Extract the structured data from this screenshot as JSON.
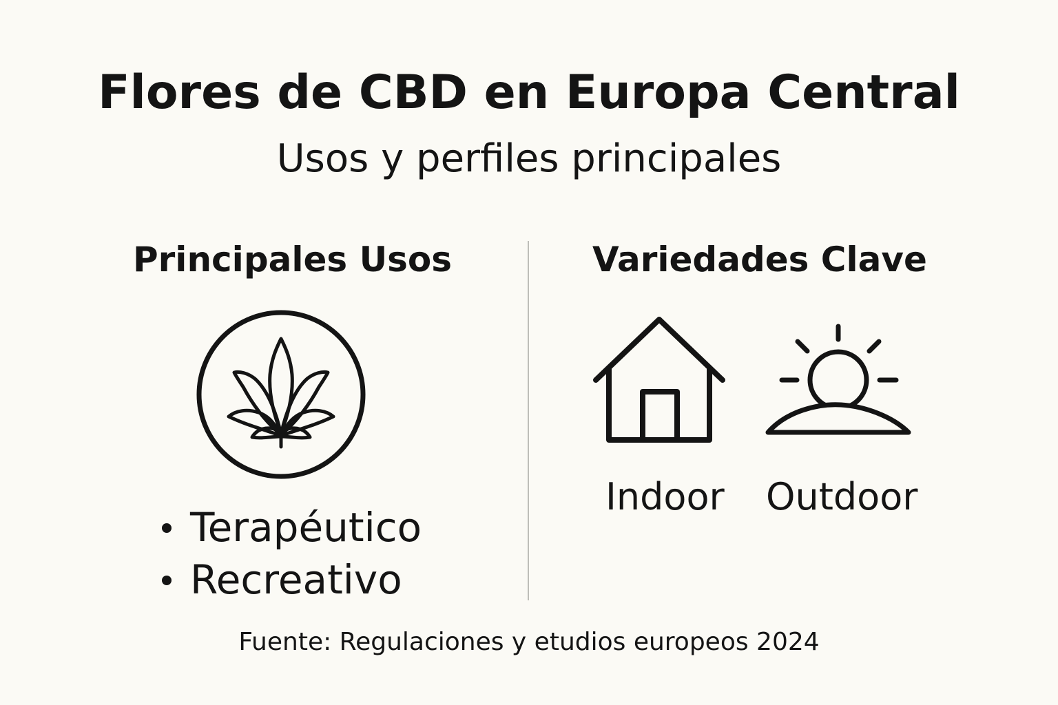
{
  "header": {
    "title": "Flores de CBD en Europa Central",
    "subtitle": "Usos y perfiles principales"
  },
  "left_section": {
    "title": "Principales Usos",
    "icon": "cannabis-leaf-icon",
    "items": [
      {
        "label": "Terapéutico"
      },
      {
        "label": "Recreativo"
      }
    ]
  },
  "right_section": {
    "title": "Variedades Clave",
    "items": [
      {
        "label": "Indoor",
        "icon": "house-icon"
      },
      {
        "label": "Outdoor",
        "icon": "sun-icon"
      }
    ]
  },
  "footer": {
    "source": "Fuente: Regulaciones y etudios europeos 2024"
  },
  "colors": {
    "background": "#fbfaf5",
    "text": "#141414",
    "divider": "#bdbdb8"
  }
}
